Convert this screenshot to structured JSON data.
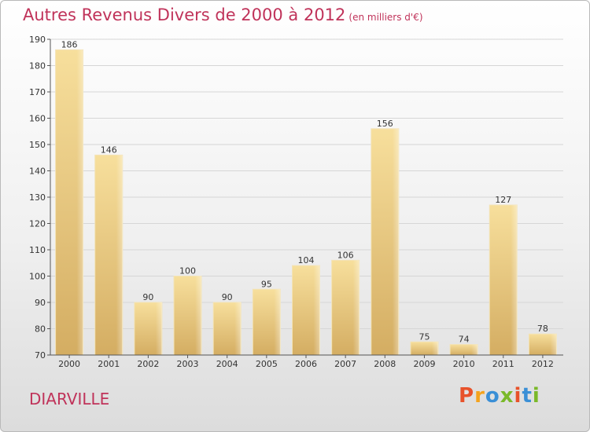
{
  "title": "Autres Revenus Divers de 2000 à 2012",
  "title_unit": "(en milliers d'€)",
  "town": "DIARVILLE",
  "logo": {
    "text": "Proxiti",
    "colors": [
      "#e8522a",
      "#f4a31d",
      "#3a8fd6",
      "#7ab929",
      "#e8522a",
      "#3a8fd6",
      "#7ab929"
    ]
  },
  "colors": {
    "title": "#c0335a",
    "bar_light": "#f6dc96",
    "bar_dark": "#d6b066"
  },
  "chart_data": {
    "type": "bar",
    "title": "Autres Revenus Divers de 2000 à 2012",
    "categories": [
      "2000",
      "2001",
      "2002",
      "2003",
      "2004",
      "2005",
      "2006",
      "2007",
      "2008",
      "2009",
      "2010",
      "2011",
      "2012"
    ],
    "values": [
      186,
      146,
      90,
      100,
      90,
      95,
      104,
      106,
      156,
      75,
      74,
      127,
      78
    ],
    "ylim": [
      70,
      190
    ],
    "yticks": [
      70,
      80,
      90,
      100,
      110,
      120,
      130,
      140,
      150,
      160,
      170,
      180,
      190
    ],
    "grid": true,
    "xlabel": "",
    "ylabel": ""
  }
}
